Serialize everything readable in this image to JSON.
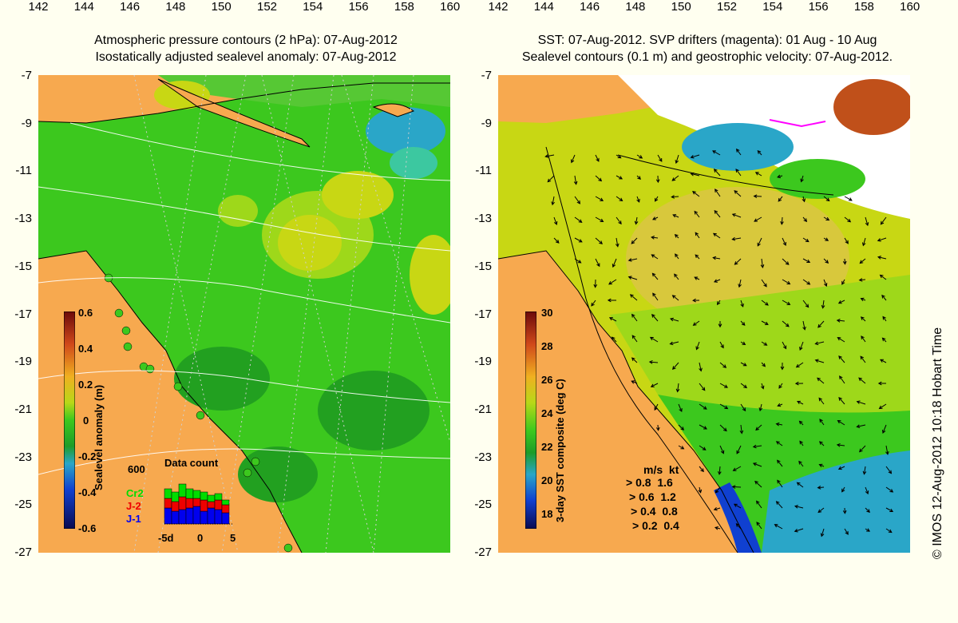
{
  "left_map": {
    "title_line1": "Atmospheric pressure contours (2 hPa): 07-Aug-2012",
    "title_line2": "Isostatically adjusted sealevel anomaly: 07-Aug-2012",
    "colorbar": {
      "label": "Sealevel anomaly (m)",
      "ticks": [
        "0.6",
        "0.4",
        "0.2",
        "0",
        "-0.2",
        "-0.4",
        "-0.6"
      ]
    },
    "data_count": {
      "title": "Data count",
      "max_label": "600",
      "series": [
        {
          "name": "Cr2",
          "color": "#00dd00"
        },
        {
          "name": "J-2",
          "color": "#ee0000"
        },
        {
          "name": "J-1",
          "color": "#0000ee"
        }
      ],
      "x_ticks": [
        "-5d",
        "0",
        "5"
      ]
    }
  },
  "right_map": {
    "title_line1": "SST: 07-Aug-2012. SVP drifters (magenta): 01 Aug - 10 Aug",
    "title_line2": "Sealevel contours (0.1 m) and geostrophic velocity: 07-Aug-2012.",
    "colorbar": {
      "label": "3-day SST composite (deg C)",
      "ticks": [
        "30",
        "28",
        "26",
        "24",
        "22",
        "20",
        "18"
      ]
    },
    "velocity_legend": {
      "header_ms": "m/s",
      "header_kt": "kt",
      "rows": [
        {
          "ms": "0.8",
          "kt": "1.6"
        },
        {
          "ms": "0.6",
          "kt": "1.2"
        },
        {
          "ms": "0.4",
          "kt": "0.8"
        },
        {
          "ms": "0.2",
          "kt": "0.4"
        }
      ]
    }
  },
  "axes": {
    "y_ticks": [
      "-7",
      "-9",
      "-11",
      "-13",
      "-15",
      "-17",
      "-19",
      "-21",
      "-23",
      "-25",
      "-27"
    ],
    "x_ticks": [
      "142",
      "144",
      "146",
      "148",
      "150",
      "152",
      "154",
      "156",
      "158",
      "160"
    ]
  },
  "credit": "© IMOS 12-Aug-2012 10:18 Hobart Time",
  "colors": {
    "land": "#f7a94f",
    "ocean_green": "#3cc81e",
    "ocean_yellow": "#c8d714",
    "ocean_blue": "#2aa6c8",
    "background": "#fffff0"
  }
}
